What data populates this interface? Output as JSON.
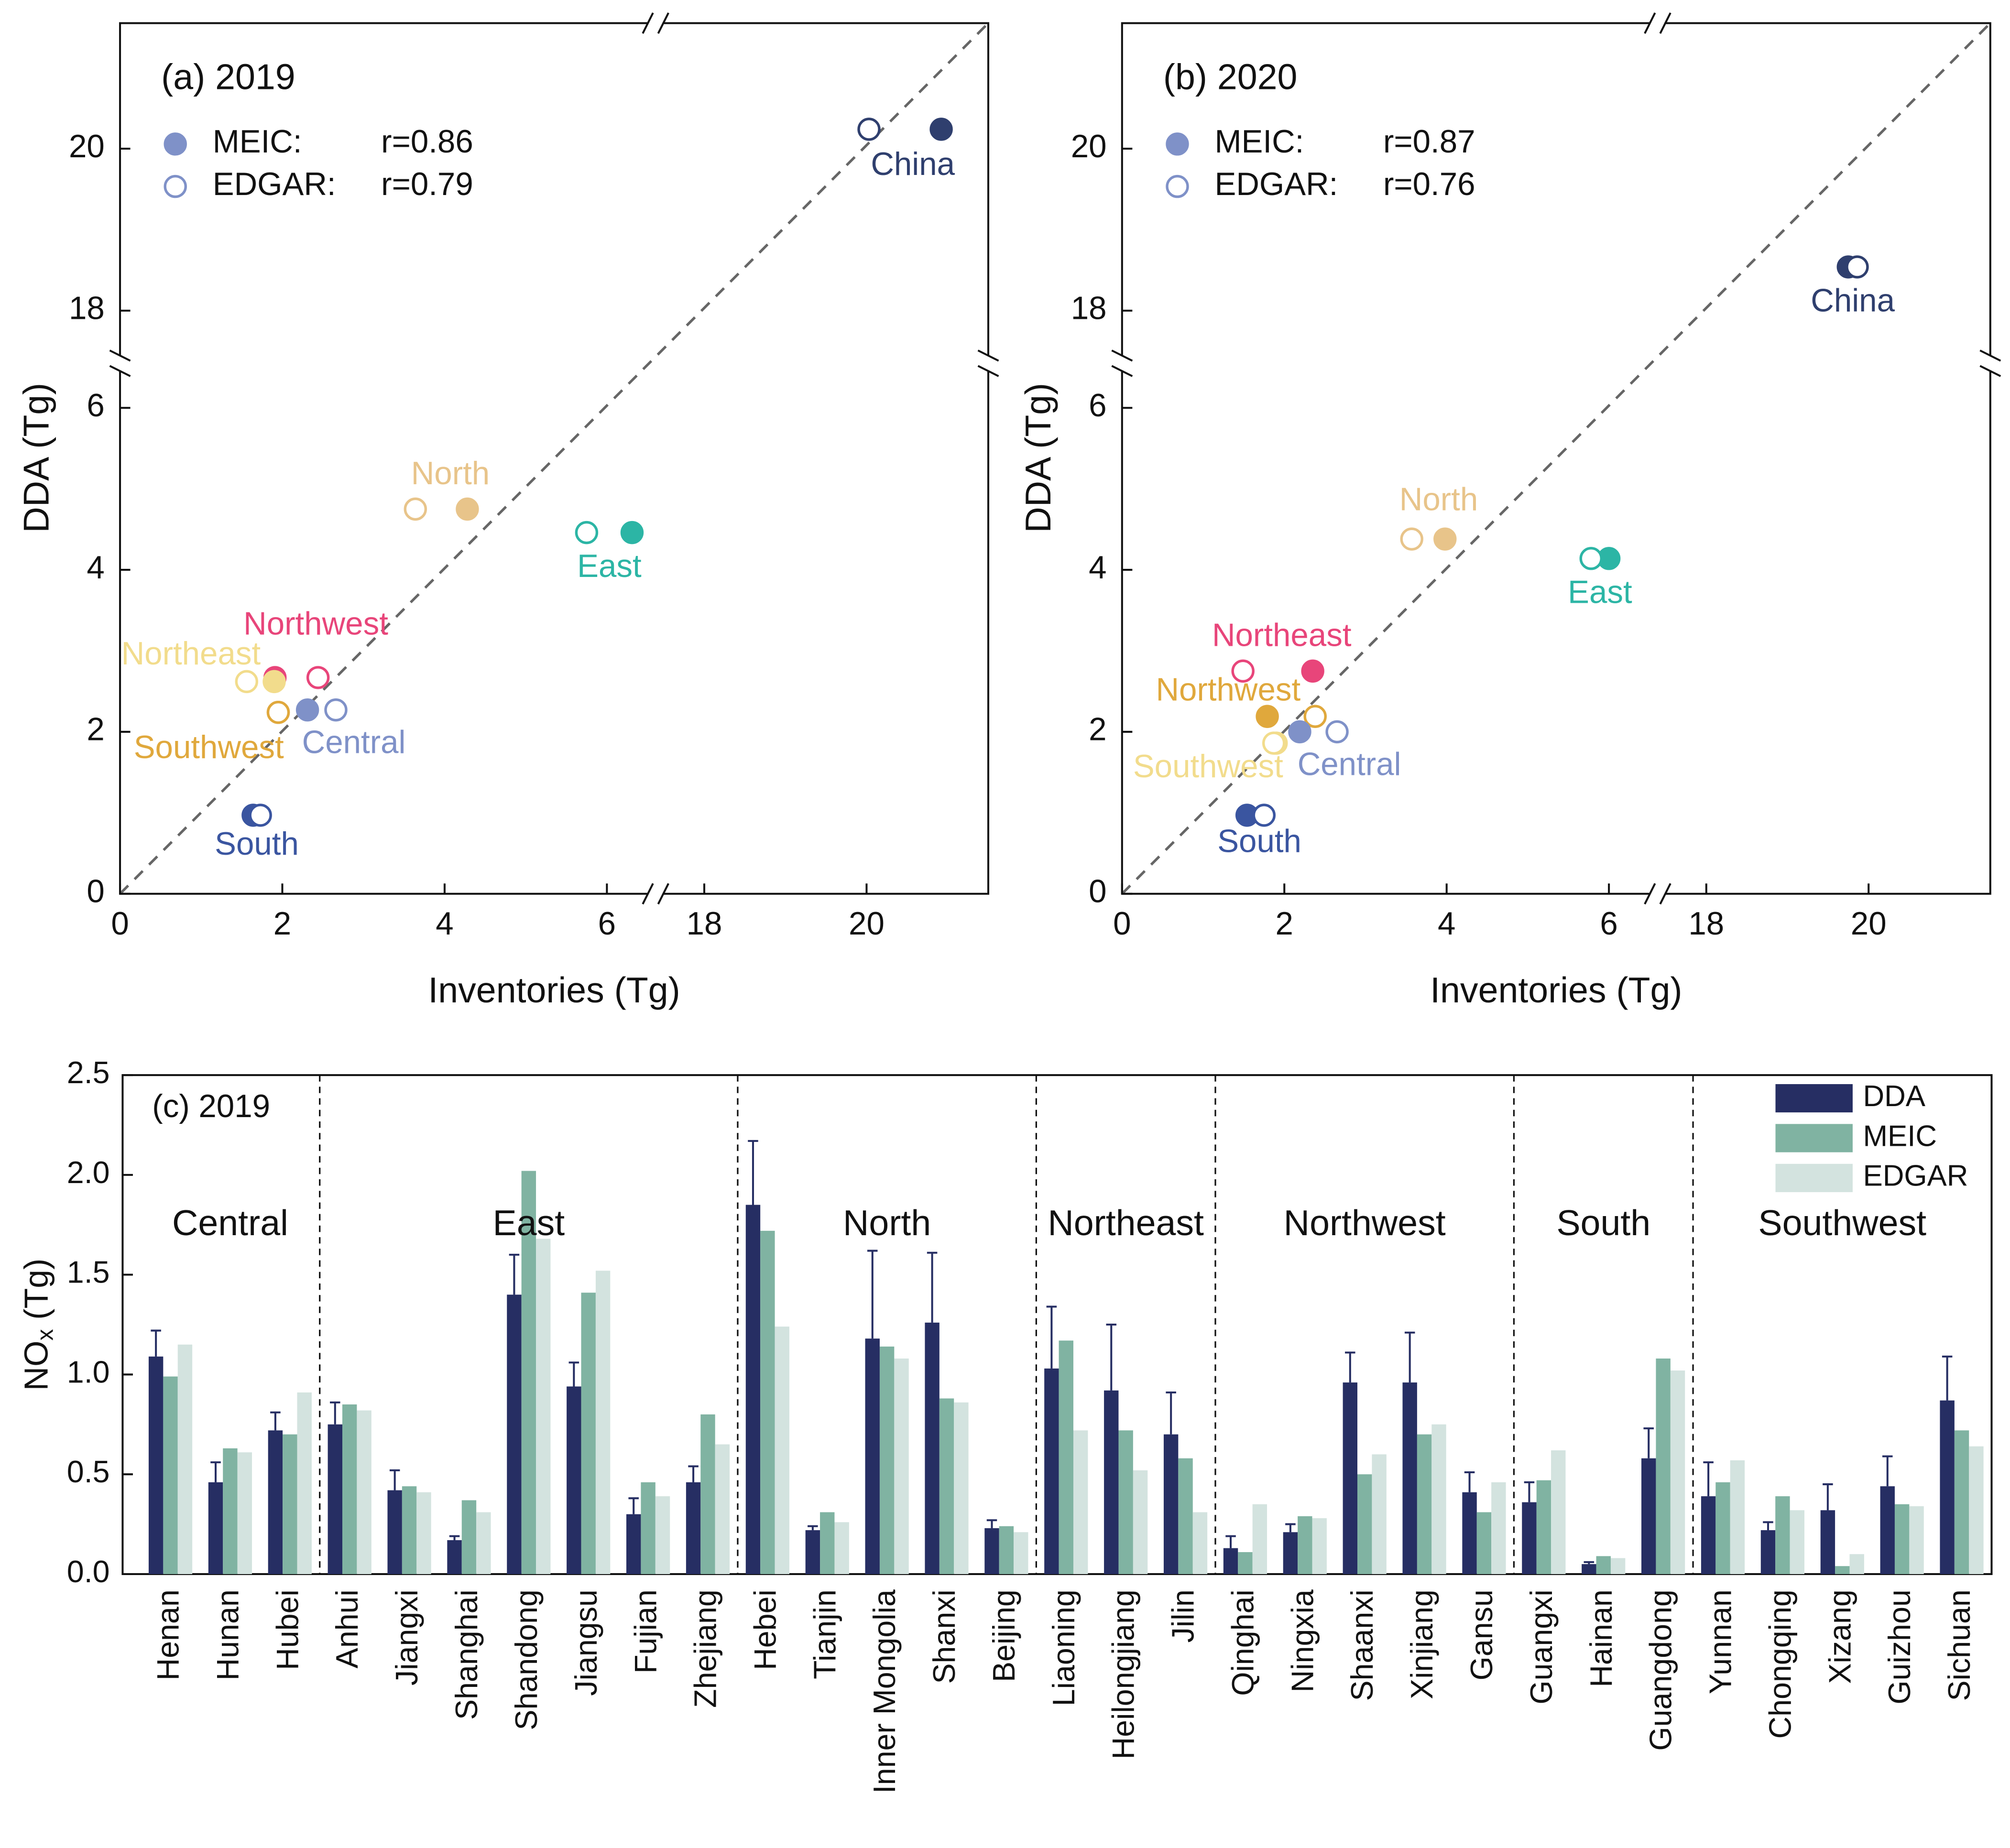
{
  "chart_data": [
    {
      "type": "scatter",
      "title": "(a) 2019",
      "xlabel": "Inventories (Tg)",
      "ylabel": "DDA (Tg)",
      "xlim": [
        0,
        21.5
      ],
      "xbreak": [
        6.6,
        17.4
      ],
      "ylim": [
        0,
        21.55
      ],
      "ybreak": [
        6.55,
        17.35
      ],
      "xticks": [
        0,
        2,
        4,
        6,
        18,
        20
      ],
      "yticks": [
        0,
        2,
        4,
        6,
        18,
        20
      ],
      "categories": [
        "China",
        "North",
        "East",
        "Northwest",
        "Northeast",
        "Southwest",
        "Central",
        "South"
      ],
      "colors": [
        "#2f3f6e",
        "#e8c48a",
        "#2cb5a5",
        "#e8457a",
        "#f2dc8c",
        "#e0a83c",
        "#7f91c8",
        "#3a55a0"
      ],
      "y": [
        20.24,
        4.75,
        4.46,
        2.67,
        2.62,
        2.24,
        2.27,
        0.97
      ],
      "series": [
        {
          "name": "MEIC:",
          "label": "r=0.86",
          "color": "#7f91c8",
          "filled": true,
          "x": [
            20.92,
            4.28,
            6.31,
            1.91,
            1.9,
            1.95,
            2.31,
            1.64
          ]
        },
        {
          "name": "EDGAR:",
          "label": "r=0.79",
          "color": "#7f91c8",
          "filled": false,
          "x": [
            20.03,
            3.64,
            5.75,
            2.44,
            1.56,
            1.95,
            2.66,
            1.73
          ]
        }
      ],
      "reference_line": true
    },
    {
      "type": "scatter",
      "title": "(b) 2020",
      "xlabel": "Inventories (Tg)",
      "ylabel": "DDA (Tg)",
      "xlim": [
        0,
        21.5
      ],
      "xbreak": [
        6.6,
        17.4
      ],
      "ylim": [
        0,
        21.55
      ],
      "ybreak": [
        6.55,
        17.35
      ],
      "xticks": [
        0,
        2,
        4,
        6,
        18,
        20
      ],
      "yticks": [
        0,
        2,
        4,
        6,
        18,
        20
      ],
      "categories": [
        "China",
        "North",
        "East",
        "Northeast",
        "Northwest",
        "Southwest",
        "Central",
        "South"
      ],
      "colors": [
        "#2f3f6e",
        "#e8c48a",
        "#2cb5a5",
        "#e8457a",
        "#e0a83c",
        "#f2dc8c",
        "#7f91c8",
        "#3a55a0"
      ],
      "y": [
        18.54,
        4.38,
        4.14,
        2.75,
        2.19,
        1.86,
        2.0,
        0.97
      ],
      "series": [
        {
          "name": "MEIC:",
          "label": "r=0.87",
          "color": "#7f91c8",
          "filled": true,
          "x": [
            19.75,
            3.98,
            6.0,
            2.35,
            1.79,
            1.9,
            2.19,
            1.54
          ]
        },
        {
          "name": "EDGAR:",
          "label": "r=0.76",
          "color": "#7f91c8",
          "filled": false,
          "x": [
            19.86,
            3.57,
            5.78,
            1.49,
            2.38,
            1.87,
            2.65,
            1.75
          ]
        }
      ],
      "reference_line": true
    },
    {
      "type": "bar",
      "title": "(c) 2019",
      "ylabel": [
        "NO",
        "x",
        " (Tg)"
      ],
      "ylim": [
        0,
        2.5
      ],
      "yticks": [
        {
          "value": 0,
          "label": "0.0"
        },
        0.5,
        {
          "value": 1,
          "label": "1.0"
        },
        1.5,
        {
          "value": 2,
          "label": "2.0"
        },
        2.5
      ],
      "legend": "upper right",
      "groups": [
        {
          "name": "Central",
          "categories": [
            "Henan",
            "Hunan",
            "Hubei"
          ]
        },
        {
          "name": "East",
          "categories": [
            "Anhui",
            "Jiangxi",
            "Shanghai",
            "Shandong",
            "Jiangsu",
            "Fujian",
            "Zhejiang"
          ]
        },
        {
          "name": "North",
          "categories": [
            "Hebei",
            "Tianjin",
            "Inner Mongolia",
            "Shanxi",
            "Beijing"
          ]
        },
        {
          "name": "Northeast",
          "categories": [
            "Liaoning",
            "Heilongjiang",
            "Jilin"
          ]
        },
        {
          "name": "Northwest",
          "categories": [
            "Qinghai",
            "Ningxia",
            "Shaanxi",
            "Xinjiang",
            "Gansu"
          ]
        },
        {
          "name": "South",
          "categories": [
            "Guangxi",
            "Hainan",
            "Guangdong"
          ]
        },
        {
          "name": "Southwest",
          "categories": [
            "Yunnan",
            "Chongqing",
            "Xizang",
            "Guizhou",
            "Sichuan"
          ]
        }
      ],
      "series": [
        {
          "name": "DDA",
          "color": "#262e63",
          "values": [
            1.09,
            0.46,
            0.72,
            0.75,
            0.42,
            0.17,
            1.4,
            0.94,
            0.3,
            0.46,
            1.85,
            0.22,
            1.18,
            1.26,
            0.23,
            1.03,
            0.92,
            0.7,
            0.13,
            0.21,
            0.96,
            0.96,
            0.41,
            0.36,
            0.05,
            0.58,
            0.39,
            0.22,
            0.32,
            0.44,
            0.87
          ],
          "errors": [
            0.13,
            0.1,
            0.09,
            0.11,
            0.1,
            0.02,
            0.2,
            0.12,
            0.08,
            0.08,
            0.32,
            0.02,
            0.44,
            0.35,
            0.04,
            0.31,
            0.33,
            0.21,
            0.06,
            0.04,
            0.15,
            0.25,
            0.1,
            0.1,
            0.01,
            0.15,
            0.17,
            0.04,
            0.13,
            0.15,
            0.22
          ]
        },
        {
          "name": "MEIC",
          "color": "#80b3a2",
          "values": [
            0.99,
            0.63,
            0.7,
            0.85,
            0.44,
            0.37,
            2.02,
            1.41,
            0.46,
            0.8,
            1.72,
            0.31,
            1.14,
            0.88,
            0.24,
            1.17,
            0.72,
            0.58,
            0.11,
            0.29,
            0.5,
            0.7,
            0.31,
            0.47,
            0.09,
            1.08,
            0.46,
            0.39,
            0.04,
            0.35,
            0.72
          ]
        },
        {
          "name": "EDGAR",
          "color": "#d3e3df",
          "values": [
            1.15,
            0.61,
            0.91,
            0.82,
            0.41,
            0.31,
            1.68,
            1.52,
            0.39,
            0.65,
            1.24,
            0.26,
            1.08,
            0.86,
            0.21,
            0.72,
            0.52,
            0.31,
            0.35,
            0.28,
            0.6,
            0.75,
            0.46,
            0.62,
            0.08,
            1.02,
            0.57,
            0.32,
            0.1,
            0.34,
            0.64
          ]
        }
      ]
    }
  ]
}
